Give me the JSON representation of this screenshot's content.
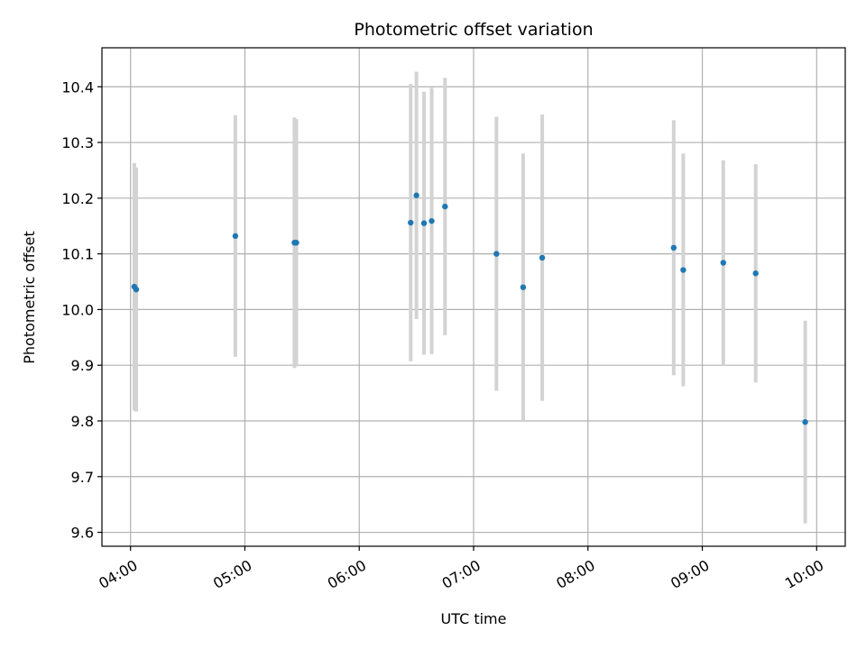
{
  "chart_data": {
    "type": "scatter",
    "title": "Photometric offset variation",
    "xlabel": "UTC time",
    "ylabel": "Photometric offset",
    "x_axis_type": "time",
    "xlim": [
      "03:45",
      "10:15"
    ],
    "ylim": [
      9.575,
      10.47
    ],
    "grid": true,
    "colors": {
      "points": "#1f77b4",
      "errorbars": "#d3d3d3",
      "grid": "#b0b0b0"
    },
    "x_ticks": [
      "04:00",
      "05:00",
      "06:00",
      "07:00",
      "08:00",
      "09:00",
      "10:00"
    ],
    "y_ticks": [
      "9.6",
      "9.7",
      "9.8",
      "9.9",
      "10.0",
      "10.1",
      "10.2",
      "10.3",
      "10.4"
    ],
    "points": [
      {
        "time": "04:02",
        "y": 10.041,
        "yerr": 0.222
      },
      {
        "time": "04:03",
        "y": 10.036,
        "yerr": 0.219
      },
      {
        "time": "04:55",
        "y": 10.132,
        "yerr": 0.217
      },
      {
        "time": "05:26",
        "y": 10.12,
        "yerr": 0.225
      },
      {
        "time": "05:27",
        "y": 10.12,
        "yerr": 0.222
      },
      {
        "time": "06:27",
        "y": 10.156,
        "yerr": 0.249
      },
      {
        "time": "06:30",
        "y": 10.205,
        "yerr": 0.222
      },
      {
        "time": "06:34",
        "y": 10.155,
        "yerr": 0.236
      },
      {
        "time": "06:38",
        "y": 10.159,
        "yerr": 0.239
      },
      {
        "time": "06:45",
        "y": 10.185,
        "yerr": 0.231
      },
      {
        "time": "07:12",
        "y": 10.1,
        "yerr": 0.246
      },
      {
        "time": "07:26",
        "y": 10.04,
        "yerr": 0.24
      },
      {
        "time": "07:36",
        "y": 10.093,
        "yerr": 0.257
      },
      {
        "time": "08:45",
        "y": 10.111,
        "yerr": 0.229
      },
      {
        "time": "08:50",
        "y": 10.071,
        "yerr": 0.209
      },
      {
        "time": "09:11",
        "y": 10.084,
        "yerr": 0.184
      },
      {
        "time": "09:28",
        "y": 10.065,
        "yerr": 0.196
      },
      {
        "time": "09:54",
        "y": 9.798,
        "yerr": 0.182
      }
    ]
  }
}
